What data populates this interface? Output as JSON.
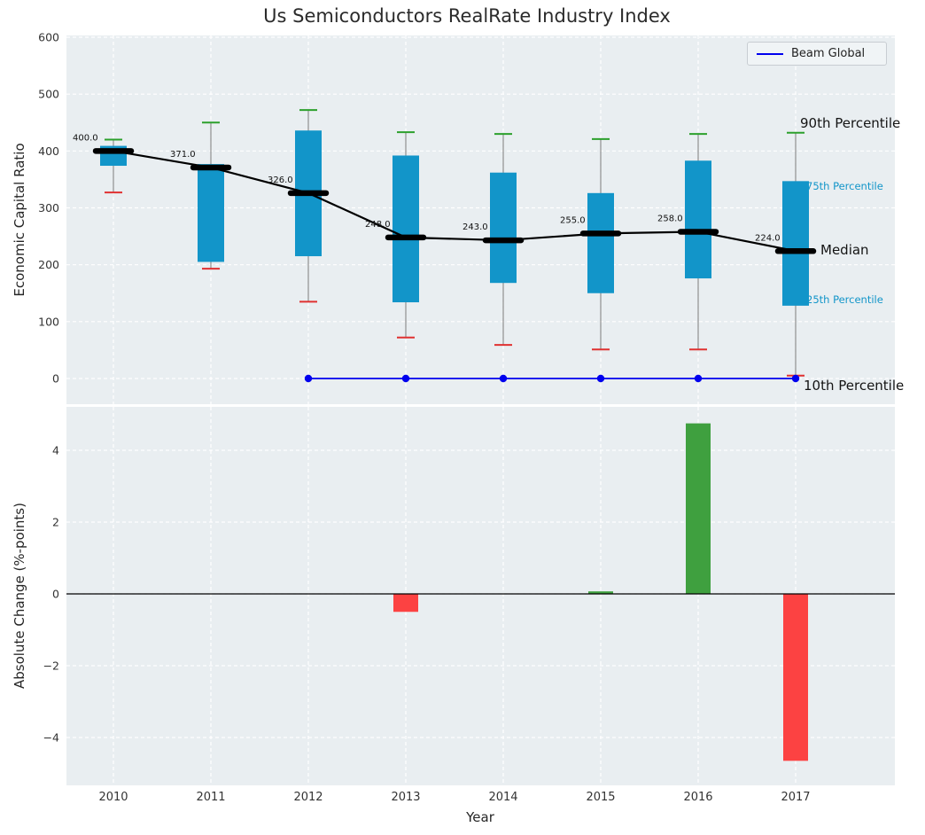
{
  "title": "Us Semiconductors RealRate Industry Index",
  "legend": {
    "label": "Beam Global"
  },
  "axes": {
    "top_ylabel": "Economic Capital Ratio",
    "bottom_ylabel": "Absolute Change (%-points)",
    "xlabel": "Year"
  },
  "annotations": {
    "p90_label": "90th Percentile",
    "p75_label": "75th Percentile",
    "median_label": "Median",
    "p25_label": "25th Percentile",
    "p10_label": "10th Percentile"
  },
  "colors": {
    "box_fill": "#1295c9",
    "cap_top": "#2ca02c",
    "cap_bottom": "#e03131",
    "median": "#000000",
    "median_line": "#000000",
    "beam_line": "#0000ee",
    "bar_positive": "#3fa03f",
    "bar_negative": "#fc4242",
    "plot_bg": "#e9eef1",
    "grid": "#ffffff",
    "whisker": "#8f8f8f",
    "tick_text": "#333333",
    "percentile_text": "#1295c9"
  },
  "chart_data": [
    {
      "type": "boxplot",
      "title": "Us Semiconductors RealRate Industry Index",
      "ylabel": "Economic Capital Ratio",
      "xlabel": "Year",
      "ylim": [
        0,
        600
      ],
      "yticks": [
        0,
        100,
        200,
        300,
        400,
        500,
        600
      ],
      "grid": true,
      "legend_position": "upper right",
      "categories": [
        2010,
        2011,
        2012,
        2013,
        2014,
        2015,
        2016,
        2017
      ],
      "series": [
        {
          "name": "p90",
          "values": [
            420,
            450,
            472,
            433,
            430,
            421,
            430,
            432
          ]
        },
        {
          "name": "q75",
          "values": [
            409,
            377,
            436,
            392,
            362,
            326,
            383,
            347
          ]
        },
        {
          "name": "median",
          "values": [
            400,
            371,
            326,
            248,
            243,
            255,
            258,
            224
          ]
        },
        {
          "name": "q25",
          "values": [
            374,
            205,
            215,
            134,
            168,
            150,
            176,
            128
          ]
        },
        {
          "name": "p10",
          "values": [
            327,
            193,
            135,
            72,
            59,
            51,
            51,
            5
          ]
        }
      ],
      "median_labels": [
        "400.0",
        "371.0",
        "326.0",
        "248.0",
        "243.0",
        "255.0",
        "258.0",
        "224.0"
      ],
      "overlay_line": {
        "name": "Beam Global",
        "x": [
          2012,
          2013,
          2014,
          2015,
          2016,
          2017
        ],
        "y": [
          0,
          0,
          0,
          0,
          0,
          0
        ]
      }
    },
    {
      "type": "bar",
      "ylabel": "Absolute Change (%-points)",
      "xlabel": "Year",
      "ylim": [
        -5.3,
        5.2
      ],
      "yticks": [
        -4,
        -2,
        0,
        2,
        4
      ],
      "grid": true,
      "categories": [
        2010,
        2011,
        2012,
        2013,
        2014,
        2015,
        2016,
        2017
      ],
      "values": [
        0,
        0,
        0,
        -0.5,
        0,
        0.07,
        4.75,
        -4.65
      ]
    }
  ]
}
